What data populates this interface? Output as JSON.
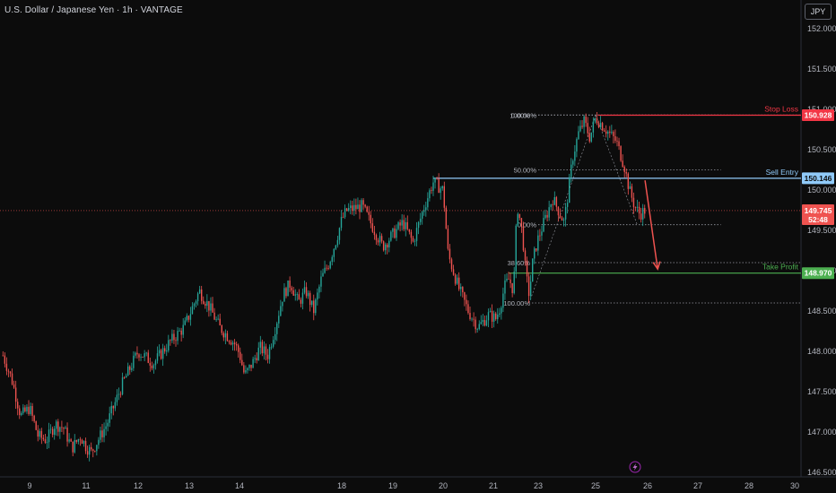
{
  "header": {
    "title": "U.S. Dollar / Japanese Yen · 1h · VANTAGE",
    "currency_button": "JPY"
  },
  "colors": {
    "background": "#0c0c0c",
    "bull": "#26a69a",
    "bear": "#ef5350",
    "stop": "#f23645",
    "entry": "#90caf9",
    "target": "#4caf50",
    "fib": "#9598a1"
  },
  "footer": {
    "icon": "lightning-icon"
  },
  "chart_data": {
    "type": "candlestick",
    "symbol": "USDJPY",
    "timeframe": "1h",
    "ylim": [
      146.5,
      152.1
    ],
    "yticks": [
      "152.000",
      "151.500",
      "151.000",
      "150.500",
      "150.000",
      "149.500",
      "149.000",
      "148.500",
      "148.000",
      "147.500",
      "147.000",
      "146.500"
    ],
    "xticks": [
      {
        "label": "9",
        "day": 9
      },
      {
        "label": "11",
        "day": 11
      },
      {
        "label": "12",
        "day": 12
      },
      {
        "label": "13",
        "day": 13
      },
      {
        "label": "14",
        "day": 14
      },
      {
        "label": "18",
        "day": 18
      },
      {
        "label": "19",
        "day": 19
      },
      {
        "label": "20",
        "day": 20
      },
      {
        "label": "21",
        "day": 21
      },
      {
        "label": "23",
        "day": 23
      },
      {
        "label": "25",
        "day": 25
      },
      {
        "label": "26",
        "day": 26
      },
      {
        "label": "27",
        "day": 27
      },
      {
        "label": "28",
        "day": 28
      },
      {
        "label": "30",
        "day": 30
      }
    ],
    "price_path": [
      [
        8.1,
        147.95
      ],
      [
        8.4,
        147.65
      ],
      [
        8.7,
        147.2
      ],
      [
        9.0,
        147.3
      ],
      [
        9.3,
        146.95
      ],
      [
        9.6,
        146.9
      ],
      [
        9.9,
        147.1
      ],
      [
        10.2,
        147.05
      ],
      [
        10.5,
        146.8
      ],
      [
        10.8,
        146.95
      ],
      [
        11.1,
        146.75
      ],
      [
        11.4,
        147.1
      ],
      [
        11.7,
        147.6
      ],
      [
        12.0,
        148.0
      ],
      [
        12.3,
        147.85
      ],
      [
        12.6,
        148.1
      ],
      [
        12.9,
        148.3
      ],
      [
        13.2,
        148.75
      ],
      [
        13.4,
        148.55
      ],
      [
        13.6,
        148.3
      ],
      [
        13.9,
        148.1
      ],
      [
        14.2,
        147.7
      ],
      [
        14.5,
        147.85
      ],
      [
        14.8,
        148.05
      ],
      [
        15.1,
        147.95
      ],
      [
        15.4,
        148.3
      ],
      [
        15.7,
        148.7
      ],
      [
        16.0,
        148.85
      ],
      [
        16.3,
        148.6
      ],
      [
        16.6,
        148.75
      ],
      [
        16.9,
        148.5
      ],
      [
        17.2,
        148.9
      ],
      [
        17.5,
        149.1
      ],
      [
        17.8,
        149.4
      ],
      [
        18.1,
        149.75
      ],
      [
        18.4,
        149.8
      ],
      [
        18.6,
        149.55
      ],
      [
        18.8,
        149.3
      ],
      [
        19.0,
        149.45
      ],
      [
        19.2,
        149.6
      ],
      [
        19.4,
        149.35
      ],
      [
        19.6,
        149.75
      ],
      [
        19.8,
        150.1
      ],
      [
        20.0,
        150.0
      ],
      [
        20.1,
        149.2
      ],
      [
        20.3,
        148.8
      ],
      [
        20.5,
        148.5
      ],
      [
        20.7,
        148.3
      ],
      [
        20.9,
        148.45
      ],
      [
        21.1,
        148.4
      ],
      [
        21.3,
        148.55
      ],
      [
        21.5,
        148.8
      ],
      [
        21.7,
        148.9
      ],
      [
        21.9,
        148.75
      ],
      [
        22.0,
        149.45
      ],
      [
        22.1,
        149.8
      ],
      [
        22.2,
        149.6
      ],
      [
        22.3,
        149.45
      ],
      [
        22.45,
        148.95
      ],
      [
        22.6,
        148.7
      ],
      [
        22.75,
        149.1
      ],
      [
        22.9,
        149.3
      ],
      [
        23.1,
        149.5
      ],
      [
        23.3,
        149.7
      ],
      [
        23.5,
        149.9
      ],
      [
        23.7,
        149.75
      ],
      [
        23.9,
        149.6
      ],
      [
        24.0,
        149.85
      ],
      [
        24.2,
        150.4
      ],
      [
        24.4,
        150.7
      ],
      [
        24.6,
        150.85
      ],
      [
        24.8,
        150.65
      ],
      [
        25.0,
        150.9
      ],
      [
        25.2,
        150.75
      ],
      [
        25.4,
        150.6
      ],
      [
        25.55,
        150.3
      ],
      [
        25.65,
        150.0
      ],
      [
        25.75,
        149.8
      ],
      [
        25.85,
        149.7
      ],
      [
        25.95,
        149.75
      ]
    ],
    "last_price": {
      "value": "149.745",
      "countdown": "52:48",
      "day": 25.95
    },
    "levels": [
      {
        "name": "Stop Loss",
        "value": "150.928",
        "price": 150.928,
        "from_day": 25.05
      },
      {
        "name": "Sell Entry",
        "value": "150.146",
        "price": 150.146,
        "from_day": 19.8
      },
      {
        "name": "Take Profit",
        "value": "148.970",
        "price": 148.97,
        "from_day": 21.7
      }
    ],
    "fib_upper": {
      "from_day": 22.2,
      "to_day": 27.45,
      "levels": [
        {
          "label": "0.00%",
          "price": 149.57
        },
        {
          "label": "50.00%",
          "price": 150.25
        },
        {
          "label": "100.00%",
          "price": 150.93
        }
      ]
    },
    "fib_lower": {
      "from_day": 21.6,
      "to_day": 30.2,
      "levels": [
        {
          "label": "0.00%",
          "price": 150.93
        },
        {
          "label": "38.60%",
          "price": 149.1
        },
        {
          "label": "100.00%",
          "price": 148.6
        }
      ]
    },
    "projection": {
      "from": [
        25.95,
        150.12
      ],
      "to": [
        26.2,
        149.02
      ]
    }
  }
}
